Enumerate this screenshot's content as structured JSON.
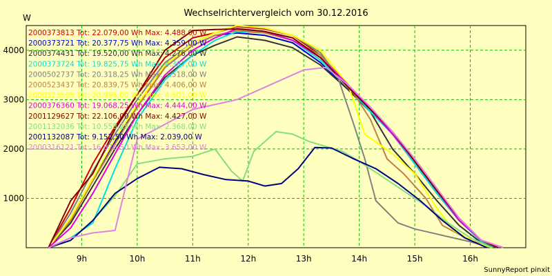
{
  "chart_data": {
    "type": "line",
    "title": "Wechselrichtervergleich vom 30.12.2016",
    "ylabel": "W",
    "xlabel": "",
    "footer": "SunnyReport pinxit",
    "xlim": [
      8.0,
      17.0
    ],
    "ylim": [
      0,
      4500
    ],
    "x_ticks": [
      9,
      10,
      11,
      12,
      13,
      14,
      15,
      16
    ],
    "x_tick_labels": [
      "9h",
      "10h",
      "11h",
      "12h",
      "13h",
      "14h",
      "15h",
      "16h"
    ],
    "y_ticks": [
      1000,
      2000,
      3000,
      4000
    ],
    "y_tick_labels": [
      "1000",
      "2000",
      "3000",
      "4000"
    ],
    "grid": true,
    "legend_position": "top-left",
    "series": [
      {
        "name": "2000373813 Tot: 22.079,00 Wh Max: 4.488,00 W",
        "color": "#cc0000",
        "points": [
          [
            8.4,
            0
          ],
          [
            8.8,
            800
          ],
          [
            9.2,
            1700
          ],
          [
            9.6,
            2450
          ],
          [
            10.0,
            3100
          ],
          [
            10.5,
            3850
          ],
          [
            11.0,
            4250
          ],
          [
            11.4,
            4350
          ],
          [
            11.8,
            4480
          ],
          [
            12.3,
            4430
          ],
          [
            12.8,
            4300
          ],
          [
            13.3,
            3900
          ],
          [
            13.8,
            3300
          ],
          [
            14.2,
            2800
          ],
          [
            14.6,
            2300
          ],
          [
            15.0,
            1700
          ],
          [
            15.4,
            1100
          ],
          [
            15.8,
            550
          ],
          [
            16.2,
            150
          ],
          [
            16.5,
            0
          ]
        ]
      },
      {
        "name": "2000373721 Tot: 20.377,75 Wh Max: 4.359,00 W",
        "color": "#0000cc",
        "points": [
          [
            8.4,
            0
          ],
          [
            8.8,
            600
          ],
          [
            9.2,
            1400
          ],
          [
            9.6,
            2150
          ],
          [
            10.0,
            2850
          ],
          [
            10.5,
            3650
          ],
          [
            11.0,
            4100
          ],
          [
            11.4,
            4300
          ],
          [
            11.8,
            4350
          ],
          [
            12.3,
            4300
          ],
          [
            12.8,
            4150
          ],
          [
            13.3,
            3750
          ],
          [
            13.8,
            3200
          ],
          [
            14.2,
            2800
          ],
          [
            14.6,
            2300
          ],
          [
            15.0,
            1700
          ],
          [
            15.4,
            1100
          ],
          [
            15.8,
            550
          ],
          [
            16.2,
            130
          ],
          [
            16.5,
            0
          ]
        ]
      },
      {
        "name": "2000374431 Tot: 19.520,00 Wh Max: 4.276,00 W",
        "color": "#333333",
        "points": [
          [
            8.4,
            0
          ],
          [
            8.8,
            500
          ],
          [
            9.2,
            1250
          ],
          [
            9.6,
            2000
          ],
          [
            10.0,
            2700
          ],
          [
            10.5,
            3450
          ],
          [
            11.0,
            3900
          ],
          [
            11.4,
            4100
          ],
          [
            11.8,
            4270
          ],
          [
            12.3,
            4200
          ],
          [
            12.8,
            4050
          ],
          [
            13.3,
            3700
          ],
          [
            13.8,
            3200
          ],
          [
            14.2,
            2750
          ],
          [
            14.6,
            2000
          ],
          [
            15.0,
            1500
          ],
          [
            15.4,
            950
          ],
          [
            15.8,
            450
          ],
          [
            16.2,
            100
          ],
          [
            16.5,
            0
          ]
        ]
      },
      {
        "name": "2000373724 Tot: 19.825,75 Wh Max: 4.387,00 W",
        "color": "#00e0e0",
        "points": [
          [
            8.4,
            0
          ],
          [
            8.8,
            200
          ],
          [
            9.2,
            500
          ],
          [
            9.6,
            1600
          ],
          [
            10.0,
            2600
          ],
          [
            10.5,
            3400
          ],
          [
            11.0,
            3900
          ],
          [
            11.4,
            4200
          ],
          [
            11.8,
            4380
          ],
          [
            12.3,
            4350
          ],
          [
            12.8,
            4200
          ],
          [
            13.3,
            3800
          ],
          [
            13.8,
            3250
          ],
          [
            14.2,
            2750
          ],
          [
            14.6,
            2300
          ],
          [
            15.0,
            1700
          ],
          [
            15.4,
            1100
          ],
          [
            15.8,
            550
          ],
          [
            16.2,
            130
          ],
          [
            16.5,
            0
          ]
        ]
      },
      {
        "name": "2000502737 Tot: 20.318,25 Wh Max: 4.518,00 W",
        "color": "#808080",
        "points": [
          [
            8.4,
            0
          ],
          [
            8.8,
            700
          ],
          [
            9.2,
            1550
          ],
          [
            9.6,
            2300
          ],
          [
            10.0,
            3000
          ],
          [
            10.5,
            3750
          ],
          [
            11.0,
            4150
          ],
          [
            11.4,
            4350
          ],
          [
            11.8,
            4500
          ],
          [
            12.3,
            4450
          ],
          [
            12.8,
            4300
          ],
          [
            13.3,
            3950
          ],
          [
            13.6,
            3500
          ],
          [
            13.9,
            2500
          ],
          [
            14.1,
            1800
          ],
          [
            14.3,
            950
          ],
          [
            14.7,
            500
          ],
          [
            15.0,
            380
          ],
          [
            15.5,
            250
          ],
          [
            16.0,
            120
          ],
          [
            16.4,
            0
          ]
        ]
      },
      {
        "name": "2000523437 Tot: 20.839,75 Wh Max: 4.406,00 W",
        "color": "#c08040",
        "points": [
          [
            8.4,
            0
          ],
          [
            8.8,
            550
          ],
          [
            9.2,
            1350
          ],
          [
            9.6,
            2100
          ],
          [
            10.0,
            2850
          ],
          [
            10.5,
            3650
          ],
          [
            11.0,
            4100
          ],
          [
            11.4,
            4300
          ],
          [
            11.8,
            4400
          ],
          [
            12.3,
            4350
          ],
          [
            12.8,
            4200
          ],
          [
            13.3,
            3900
          ],
          [
            13.8,
            3300
          ],
          [
            14.2,
            2600
          ],
          [
            14.5,
            1800
          ],
          [
            14.8,
            1500
          ],
          [
            15.2,
            1000
          ],
          [
            15.5,
            450
          ],
          [
            16.0,
            150
          ],
          [
            16.4,
            0
          ]
        ]
      },
      {
        "name": "2000523505 Tot: 20.995,00 Wh Max: 4.501,00 W",
        "color": "#ffff00",
        "points": [
          [
            8.4,
            0
          ],
          [
            8.8,
            600
          ],
          [
            9.2,
            1400
          ],
          [
            9.6,
            2200
          ],
          [
            10.0,
            2900
          ],
          [
            10.5,
            3700
          ],
          [
            11.0,
            4150
          ],
          [
            11.4,
            4350
          ],
          [
            11.8,
            4500
          ],
          [
            12.3,
            4450
          ],
          [
            12.8,
            4300
          ],
          [
            13.3,
            4000
          ],
          [
            13.8,
            3300
          ],
          [
            14.1,
            2300
          ],
          [
            14.6,
            1900
          ],
          [
            15.0,
            1500
          ],
          [
            15.4,
            800
          ],
          [
            15.7,
            350
          ],
          [
            16.1,
            100
          ],
          [
            16.4,
            0
          ]
        ]
      },
      {
        "name": "2000376360 Tot: 19.068,25 Wh Max: 4.444,00 W",
        "color": "#e000e0",
        "points": [
          [
            8.4,
            0
          ],
          [
            8.8,
            400
          ],
          [
            9.2,
            1100
          ],
          [
            9.6,
            1900
          ],
          [
            10.0,
            2700
          ],
          [
            10.5,
            3500
          ],
          [
            11.0,
            4000
          ],
          [
            11.4,
            4250
          ],
          [
            11.8,
            4440
          ],
          [
            12.3,
            4380
          ],
          [
            12.8,
            4200
          ],
          [
            13.3,
            3850
          ],
          [
            13.8,
            3300
          ],
          [
            14.2,
            2800
          ],
          [
            14.6,
            2300
          ],
          [
            15.0,
            1750
          ],
          [
            15.4,
            1150
          ],
          [
            15.8,
            550
          ],
          [
            16.2,
            150
          ],
          [
            16.6,
            0
          ]
        ]
      },
      {
        "name": "2001129627 Tot: 22.106,00 Wh Max: 4.427,00 W",
        "color": "#800000",
        "points": [
          [
            8.4,
            0
          ],
          [
            8.8,
            950
          ],
          [
            9.2,
            1500
          ],
          [
            9.6,
            2400
          ],
          [
            10.0,
            3100
          ],
          [
            10.5,
            4000
          ],
          [
            11.0,
            4400
          ],
          [
            11.4,
            4420
          ],
          [
            11.8,
            4430
          ],
          [
            12.3,
            4380
          ],
          [
            12.8,
            4250
          ],
          [
            13.3,
            3850
          ],
          [
            13.8,
            3250
          ],
          [
            14.2,
            2800
          ],
          [
            14.6,
            2350
          ],
          [
            15.0,
            1750
          ],
          [
            15.4,
            1150
          ],
          [
            15.8,
            600
          ],
          [
            16.2,
            150
          ],
          [
            16.5,
            0
          ]
        ]
      },
      {
        "name": "2001132036 Tot: 10.558,25 Wh Max: 2.368,00 W",
        "color": "#80e080",
        "points": [
          [
            8.4,
            0
          ],
          [
            8.8,
            150
          ],
          [
            9.2,
            550
          ],
          [
            9.6,
            1050
          ],
          [
            10.0,
            1700
          ],
          [
            10.5,
            1800
          ],
          [
            11.0,
            1850
          ],
          [
            11.4,
            2000
          ],
          [
            11.7,
            1550
          ],
          [
            11.9,
            1350
          ],
          [
            12.1,
            1950
          ],
          [
            12.5,
            2350
          ],
          [
            12.8,
            2300
          ],
          [
            13.1,
            2150
          ],
          [
            13.4,
            2050
          ],
          [
            13.7,
            1950
          ],
          [
            14.0,
            1750
          ],
          [
            14.4,
            1450
          ],
          [
            14.8,
            1150
          ],
          [
            15.2,
            850
          ],
          [
            15.6,
            500
          ],
          [
            16.0,
            200
          ],
          [
            16.4,
            0
          ]
        ]
      },
      {
        "name": "2001132087 Tot: 9.152,50 Wh Max: 2.039,00 W",
        "color": "#000080",
        "points": [
          [
            8.4,
            0
          ],
          [
            8.8,
            150
          ],
          [
            9.2,
            550
          ],
          [
            9.6,
            1100
          ],
          [
            10.0,
            1400
          ],
          [
            10.4,
            1630
          ],
          [
            10.8,
            1600
          ],
          [
            11.2,
            1480
          ],
          [
            11.6,
            1380
          ],
          [
            12.0,
            1350
          ],
          [
            12.3,
            1250
          ],
          [
            12.6,
            1300
          ],
          [
            12.9,
            1600
          ],
          [
            13.2,
            2030
          ],
          [
            13.5,
            2020
          ],
          [
            13.9,
            1800
          ],
          [
            14.3,
            1600
          ],
          [
            14.7,
            1300
          ],
          [
            15.1,
            950
          ],
          [
            15.5,
            550
          ],
          [
            15.9,
            200
          ],
          [
            16.3,
            0
          ]
        ]
      },
      {
        "name": "2000316121 Tot: 16.878,50 Wh Max: 3.653,00 W",
        "color": "#e080e0",
        "points": [
          [
            8.4,
            0
          ],
          [
            8.8,
            200
          ],
          [
            9.2,
            300
          ],
          [
            9.6,
            350
          ],
          [
            10.0,
            2200
          ],
          [
            10.5,
            2500
          ],
          [
            11.0,
            2800
          ],
          [
            11.4,
            2900
          ],
          [
            11.8,
            3000
          ],
          [
            12.2,
            3200
          ],
          [
            12.6,
            3400
          ],
          [
            13.0,
            3600
          ],
          [
            13.4,
            3650
          ],
          [
            13.8,
            3300
          ],
          [
            14.2,
            2850
          ],
          [
            14.6,
            2350
          ],
          [
            15.0,
            1800
          ],
          [
            15.4,
            1200
          ],
          [
            15.8,
            600
          ],
          [
            16.2,
            150
          ],
          [
            16.6,
            0
          ]
        ]
      }
    ]
  }
}
